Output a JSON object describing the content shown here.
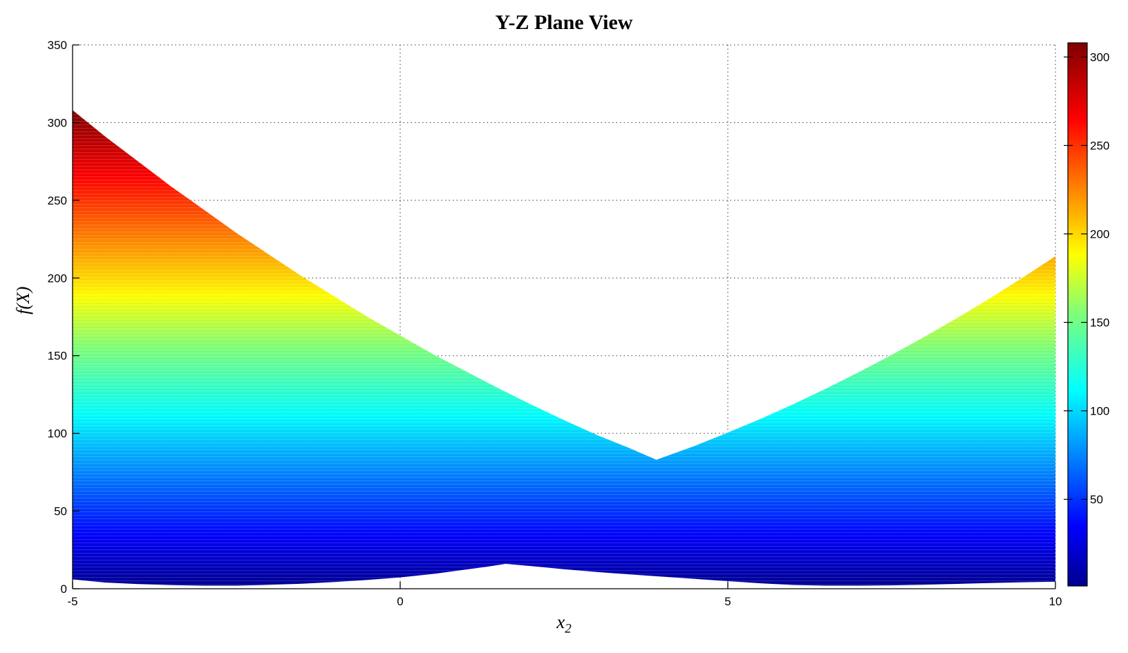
{
  "chart_data": {
    "type": "area",
    "title": "Y-Z Plane View",
    "xlabel": "x_2",
    "xlabel_base": "x",
    "xlabel_sub": "2",
    "ylabel": "f(X)",
    "xlim": [
      -5,
      10
    ],
    "ylim": [
      0,
      350
    ],
    "x_ticks": [
      -5,
      0,
      5,
      10
    ],
    "y_ticks": [
      0,
      50,
      100,
      150,
      200,
      250,
      300,
      350
    ],
    "x_gridlines": [
      0,
      5,
      10
    ],
    "y_gridlines": [
      50,
      100,
      150,
      200,
      250,
      300,
      350
    ],
    "grid_style": "dotted",
    "fill_rule": "region between lower and upper envelope, colored by f value (height)",
    "colormap": "jet",
    "caxis": [
      1,
      308
    ],
    "colorbar_ticks": [
      50,
      100,
      150,
      200,
      250,
      300
    ],
    "series": [
      {
        "name": "upper_envelope",
        "x": [
          -5,
          -4.5,
          -4,
          -3.5,
          -3,
          -2.5,
          -2,
          -1.5,
          -1,
          -0.5,
          0,
          0.5,
          1,
          1.5,
          2,
          2.5,
          3,
          3.5,
          3.91,
          4.5,
          5,
          5.5,
          6,
          6.5,
          7,
          7.5,
          8,
          8.5,
          9,
          9.5,
          10
        ],
        "f": [
          308,
          291,
          275,
          259,
          244,
          229,
          215,
          201,
          188,
          175,
          163,
          151,
          140,
          129,
          118.5,
          108.5,
          99,
          90.5,
          83,
          92,
          100.5,
          109.3,
          118.8,
          128.8,
          139.4,
          150.5,
          162.1,
          174.2,
          186.9,
          200.2,
          214
        ]
      },
      {
        "name": "lower_envelope",
        "x": [
          -5,
          -4.5,
          -4,
          -3.5,
          -3,
          -2.5,
          -2,
          -1.5,
          -1,
          -0.5,
          0,
          0.5,
          1,
          1.3,
          1.61,
          2,
          2.5,
          3,
          3.5,
          4,
          4.5,
          5,
          5.5,
          6,
          6.5,
          7,
          7.5,
          8,
          8.5,
          9,
          9.5,
          10
        ],
        "f": [
          6,
          4,
          3,
          2.3,
          2,
          2,
          2.5,
          3.2,
          4.3,
          5.7,
          7.3,
          9.5,
          12.3,
          14,
          16,
          14.6,
          12.6,
          10.8,
          9.2,
          7.8,
          6.3,
          4.9,
          3.5,
          2.4,
          2,
          2,
          2.2,
          2.6,
          3.1,
          3.7,
          4.2,
          4.5
        ]
      }
    ],
    "key_points": {
      "upper_left_max": {
        "x": -5,
        "f": 308
      },
      "upper_valley": {
        "x": 3.91,
        "f": 83
      },
      "upper_right_end": {
        "x": 10,
        "f": 214
      },
      "lower_bump_peak": {
        "x": 1.61,
        "f": 16
      }
    },
    "jet_stops": [
      [
        0.0,
        "#00008F"
      ],
      [
        0.11,
        "#0000FF"
      ],
      [
        0.36,
        "#00FFFF"
      ],
      [
        0.5,
        "#7DFF7A"
      ],
      [
        0.61,
        "#FFFF00"
      ],
      [
        0.86,
        "#FF0000"
      ],
      [
        1.0,
        "#800000"
      ]
    ],
    "legend": "none",
    "colorbar_position": "right"
  }
}
